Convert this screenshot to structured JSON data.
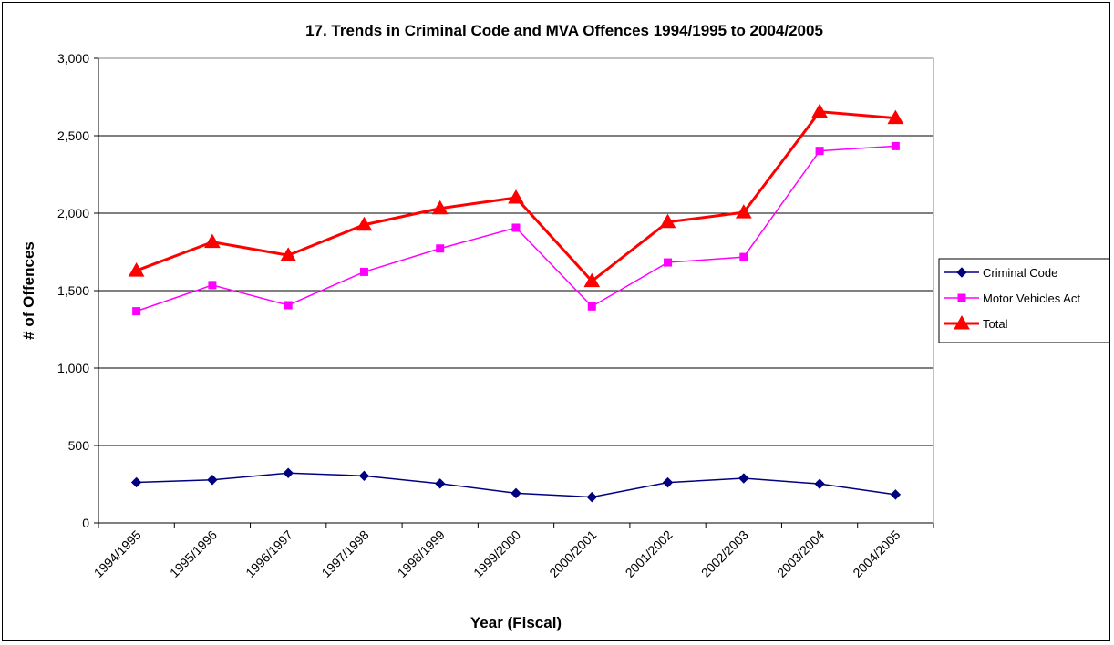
{
  "chart_data": {
    "type": "line",
    "title": "17. Trends in Criminal Code and MVA Offences 1994/1995 to 2004/2005",
    "xlabel": "Year (Fiscal)",
    "ylabel": "# of Offences",
    "ylim": [
      0,
      3000
    ],
    "yticks": [
      "0",
      "500",
      "1,000",
      "1,500",
      "2,000",
      "2,500",
      "3,000"
    ],
    "ytick_values": [
      0,
      500,
      1000,
      1500,
      2000,
      2500,
      3000
    ],
    "grid": "horizontal",
    "legend_position": "right",
    "categories": [
      "1994/1995",
      "1995/1996",
      "1996/1997",
      "1997/1998",
      "1998/1999",
      "1999/2000",
      "2000/2001",
      "2001/2002",
      "2002/2003",
      "2003/2004",
      "2004/2005"
    ],
    "series": [
      {
        "name": "Criminal Code",
        "color": "#000080",
        "marker": "diamond",
        "values": [
          262,
          278,
          322,
          304,
          254,
          192,
          167,
          261,
          288,
          252,
          183
        ]
      },
      {
        "name": "Motor Vehicles Act",
        "color": "#ff00ff",
        "marker": "square",
        "values": [
          1367,
          1536,
          1406,
          1621,
          1772,
          1906,
          1398,
          1682,
          1717,
          2402,
          2433
        ]
      },
      {
        "name": "Total",
        "color": "#ff0000",
        "marker": "triangle",
        "values": [
          1629,
          1814,
          1728,
          1925,
          2031,
          2100,
          1561,
          1943,
          2005,
          2655,
          2614
        ]
      }
    ]
  }
}
